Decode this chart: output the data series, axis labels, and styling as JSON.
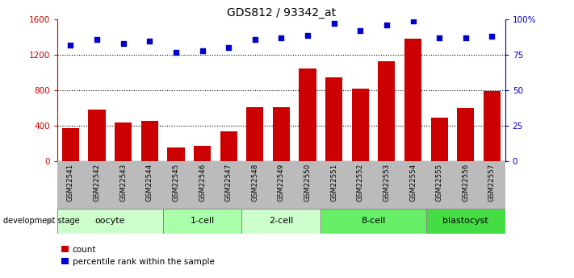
{
  "title": "GDS812 / 93342_at",
  "samples": [
    "GSM22541",
    "GSM22542",
    "GSM22543",
    "GSM22544",
    "GSM22545",
    "GSM22546",
    "GSM22547",
    "GSM22548",
    "GSM22549",
    "GSM22550",
    "GSM22551",
    "GSM22552",
    "GSM22553",
    "GSM22554",
    "GSM22555",
    "GSM22556",
    "GSM22557"
  ],
  "counts": [
    370,
    580,
    440,
    460,
    155,
    175,
    340,
    610,
    610,
    1050,
    950,
    820,
    1130,
    1380,
    490,
    600,
    790
  ],
  "percentiles": [
    82,
    86,
    83,
    85,
    77,
    78,
    80,
    86,
    87,
    89,
    97,
    92,
    96,
    99,
    87,
    87,
    88
  ],
  "bar_color": "#cc0000",
  "dot_color": "#0000cc",
  "ylim_left": [
    0,
    1600
  ],
  "ylim_right": [
    0,
    100
  ],
  "yticks_left": [
    0,
    400,
    800,
    1200,
    1600
  ],
  "yticks_right": [
    0,
    25,
    50,
    75,
    100
  ],
  "yticklabels_right": [
    "0",
    "25",
    "50",
    "75",
    "100%"
  ],
  "grid_values": [
    400,
    800,
    1200
  ],
  "stages": [
    {
      "label": "oocyte",
      "start": 0,
      "end": 4,
      "color": "#ccffcc"
    },
    {
      "label": "1-cell",
      "start": 4,
      "end": 7,
      "color": "#aaffaa"
    },
    {
      "label": "2-cell",
      "start": 7,
      "end": 10,
      "color": "#ccffcc"
    },
    {
      "label": "8-cell",
      "start": 10,
      "end": 14,
      "color": "#66ee66"
    },
    {
      "label": "blastocyst",
      "start": 14,
      "end": 17,
      "color": "#44dd44"
    }
  ],
  "tick_bg_color": "#bbbbbb",
  "dev_stage_label": "development stage",
  "legend_count": "count",
  "legend_pct": "percentile rank within the sample",
  "title_fontsize": 10,
  "axis_fontsize": 7.5,
  "label_fontsize": 8
}
